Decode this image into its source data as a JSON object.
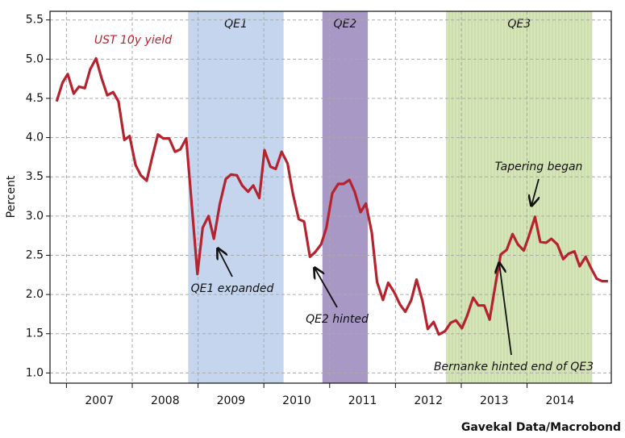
{
  "chart_data": {
    "type": "line",
    "y_label": "Percent",
    "source": "Gavekal Data/Macrobond",
    "xlim": [
      2006.75,
      2015.28
    ],
    "ylim": [
      0.87,
      5.61
    ],
    "yticks": [
      {
        "value": 1,
        "label": "1.0"
      },
      1.5,
      {
        "value": 2,
        "label": "2.0"
      },
      2.5,
      {
        "value": 3,
        "label": "3.0"
      },
      3.5,
      {
        "value": 4,
        "label": "4.0"
      },
      4.5,
      {
        "value": 5,
        "label": "5.0"
      },
      5.5
    ],
    "xticks": [
      {
        "value": 2007.5,
        "label": "2007"
      },
      {
        "value": 2008.5,
        "label": "2008"
      },
      {
        "value": 2009.5,
        "label": "2009"
      },
      {
        "value": 2010.5,
        "label": "2010"
      },
      {
        "value": 2011.5,
        "label": "2011"
      },
      {
        "value": 2012.5,
        "label": "2012"
      },
      {
        "value": 2013.5,
        "label": "2013"
      },
      {
        "value": 2014.5,
        "label": "2014"
      }
    ],
    "grid": true,
    "regions": [
      {
        "label": "QE1",
        "start": 2008.85,
        "end": 2010.3,
        "color": "#c5d5ee"
      },
      {
        "label": "QE2",
        "start": 2010.89,
        "end": 2011.58,
        "color": "#a898c6"
      },
      {
        "label": "QE3",
        "start": 2012.77,
        "end": 2014.99,
        "color": "#d6e5ba"
      }
    ],
    "annotations": [
      "QE1 expanded",
      "QE2 hinted",
      "Tapering began",
      "Bernanke hinted end of QE3"
    ],
    "series": [
      {
        "name": "UST 10y yield",
        "color": "#b5232e",
        "x": [
          2006.85,
          2006.94,
          2007.02,
          2007.11,
          2007.19,
          2007.28,
          2007.36,
          2007.45,
          2007.53,
          2007.62,
          2007.71,
          2007.79,
          2007.88,
          2007.96,
          2008.05,
          2008.13,
          2008.22,
          2008.3,
          2008.39,
          2008.47,
          2008.56,
          2008.65,
          2008.73,
          2008.82,
          2008.9,
          2008.99,
          2009.07,
          2009.16,
          2009.24,
          2009.33,
          2009.42,
          2009.5,
          2009.59,
          2009.67,
          2009.76,
          2009.84,
          2009.93,
          2010.01,
          2010.1,
          2010.18,
          2010.27,
          2010.36,
          2010.44,
          2010.53,
          2010.61,
          2010.7,
          2010.78,
          2010.87,
          2010.95,
          2011.04,
          2011.13,
          2011.21,
          2011.3,
          2011.38,
          2011.47,
          2011.55,
          2011.64,
          2011.72,
          2011.81,
          2011.89,
          2011.98,
          2012.07,
          2012.15,
          2012.24,
          2012.32,
          2012.41,
          2012.49,
          2012.58,
          2012.66,
          2012.75,
          2012.84,
          2012.92,
          2013.01,
          2013.09,
          2013.18,
          2013.26,
          2013.35,
          2013.43,
          2013.52,
          2013.6,
          2013.69,
          2013.78,
          2013.86,
          2013.95,
          2014.03,
          2014.12,
          2014.2,
          2014.29,
          2014.37,
          2014.46,
          2014.55,
          2014.63,
          2014.72,
          2014.8,
          2014.89,
          2014.97,
          2015.06,
          2015.14,
          2015.23
        ],
        "values": [
          4.46,
          4.7,
          4.81,
          4.56,
          4.65,
          4.63,
          4.87,
          5.01,
          4.77,
          4.54,
          4.58,
          4.46,
          3.97,
          4.02,
          3.65,
          3.52,
          3.45,
          3.74,
          4.04,
          3.99,
          3.99,
          3.82,
          3.85,
          3.99,
          3.19,
          2.26,
          2.85,
          3.0,
          2.71,
          3.15,
          3.47,
          3.53,
          3.52,
          3.39,
          3.31,
          3.39,
          3.23,
          3.84,
          3.63,
          3.6,
          3.82,
          3.67,
          3.29,
          2.96,
          2.93,
          2.48,
          2.54,
          2.64,
          2.85,
          3.29,
          3.41,
          3.41,
          3.46,
          3.31,
          3.05,
          3.16,
          2.79,
          2.16,
          1.93,
          2.15,
          2.03,
          1.87,
          1.78,
          1.93,
          2.19,
          1.92,
          1.56,
          1.65,
          1.49,
          1.53,
          1.64,
          1.67,
          1.57,
          1.73,
          1.96,
          1.86,
          1.86,
          1.68,
          2.13,
          2.51,
          2.57,
          2.77,
          2.64,
          2.56,
          2.75,
          2.99,
          2.67,
          2.66,
          2.71,
          2.64,
          2.45,
          2.52,
          2.55,
          2.36,
          2.48,
          2.34,
          2.2,
          2.17,
          2.17
        ]
      }
    ]
  }
}
